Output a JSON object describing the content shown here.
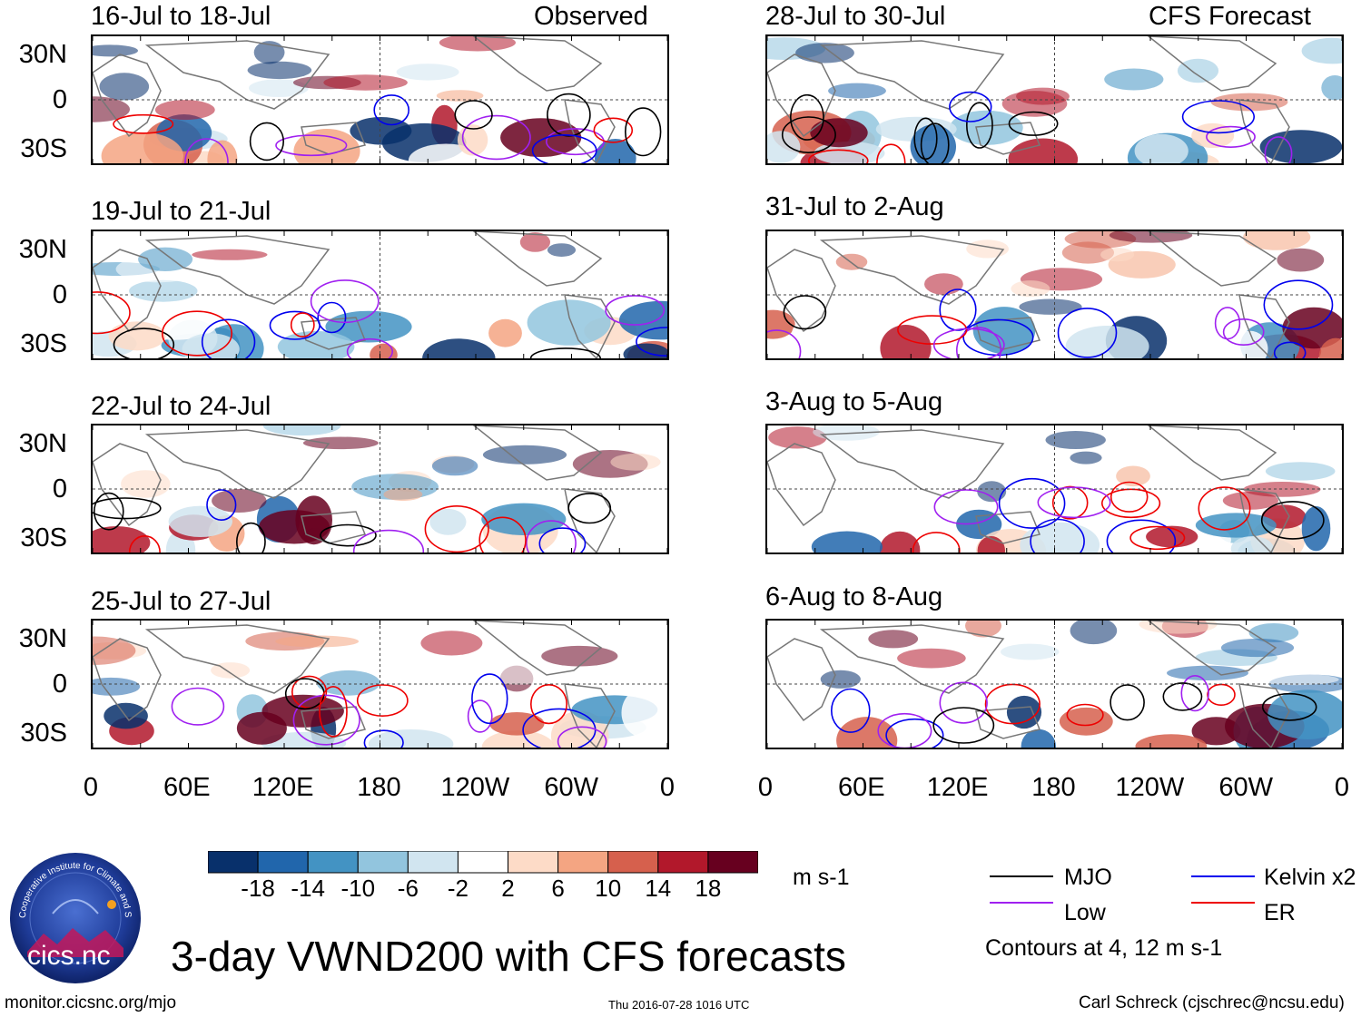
{
  "left_header": {
    "period": "16-Jul to 18-Jul",
    "type": "Observed"
  },
  "right_header": {
    "period": "28-Jul to 30-Jul",
    "type": "CFS Forecast"
  },
  "left_periods": [
    "19-Jul to 21-Jul",
    "22-Jul to 24-Jul",
    "25-Jul to 27-Jul"
  ],
  "right_periods": [
    "31-Jul to 2-Aug",
    "3-Aug to 5-Aug",
    "6-Aug to 8-Aug"
  ],
  "y_labels": [
    "30N",
    "0",
    "30S"
  ],
  "x_labels": [
    "0",
    "60E",
    "120E",
    "180",
    "120W",
    "60W",
    "0"
  ],
  "colorbar": {
    "labels": [
      "-18",
      "-14",
      "-10",
      "-6",
      "-2",
      "2",
      "6",
      "10",
      "14",
      "18"
    ],
    "colors": [
      "#08306b",
      "#2166ac",
      "#4393c3",
      "#92c5de",
      "#d1e5f0",
      "#ffffff",
      "#fddbc7",
      "#f4a582",
      "#d6604d",
      "#b2182b",
      "#67001f"
    ],
    "units": "m s-1"
  },
  "legend": {
    "items": [
      {
        "label": "MJO",
        "color": "#000000"
      },
      {
        "label": "Kelvin x2",
        "color": "#0000ee"
      },
      {
        "label": "Low",
        "color": "#a020f0"
      },
      {
        "label": "ER",
        "color": "#ee0000"
      }
    ],
    "note": "Contours at 4, 12 m s-1"
  },
  "logo": {
    "text": "cics.nc",
    "ring_text": "Cooperative Institute for Climate and Satellites"
  },
  "title": "3-day VWND200 with CFS forecasts",
  "footer": {
    "url": "monitor.cicsnc.org/mjo",
    "timestamp": "Thu 2016-07-28 1016 UTC",
    "author": "Carl Schreck (cjschrec@ncsu.edu)"
  }
}
